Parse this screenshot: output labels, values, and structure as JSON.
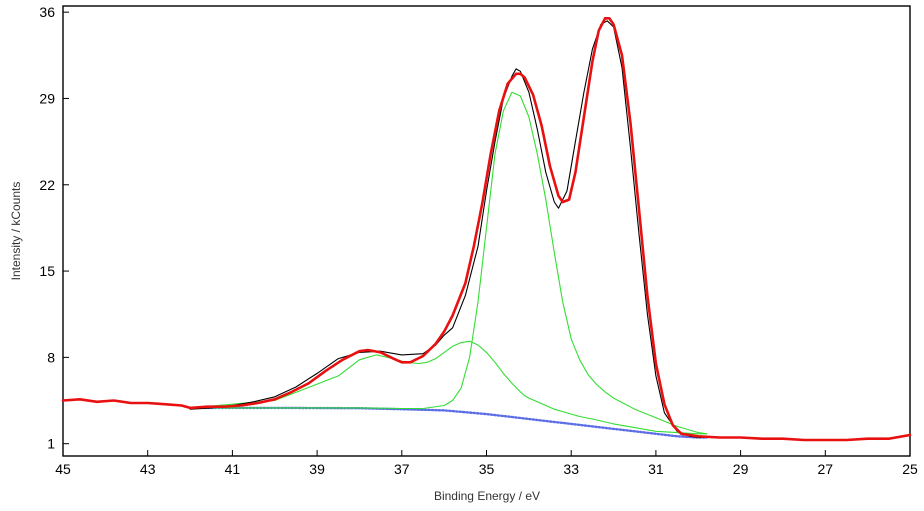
{
  "chart_data": {
    "type": "line",
    "title": "",
    "xlabel": "Binding Energy / eV",
    "ylabel": "Intensity / kCounts",
    "xlim": [
      45,
      25
    ],
    "ylim": [
      0,
      36.5
    ],
    "x_reversed": true,
    "grid": false,
    "x_ticks": [
      45,
      43,
      41,
      39,
      37,
      35,
      33,
      31,
      29,
      27,
      25
    ],
    "y_ticks": [
      1,
      8,
      15,
      22,
      29,
      36
    ],
    "series": [
      {
        "role": "measured",
        "color": "#000000",
        "x": [
          42,
          41.5,
          41,
          40.5,
          40,
          39.5,
          39,
          38.5,
          38,
          37.5,
          37,
          36.5,
          36.2,
          36,
          35.8,
          35.5,
          35.2,
          35,
          34.8,
          34.6,
          34.4,
          34.3,
          34.2,
          34,
          33.8,
          33.6,
          33.4,
          33.3,
          33.1,
          32.9,
          32.7,
          32.5,
          32.3,
          32.15,
          32,
          31.8,
          31.6,
          31.4,
          31.2,
          31,
          30.8,
          30.5,
          30.2,
          30,
          29.8
        ],
        "values": [
          3.8,
          3.9,
          4.1,
          4.4,
          4.8,
          5.6,
          6.7,
          7.9,
          8.4,
          8.5,
          8.2,
          8.3,
          9.0,
          9.8,
          10.4,
          13.0,
          17.0,
          21.5,
          25.5,
          29.0,
          30.8,
          31.4,
          31.2,
          29.5,
          26.5,
          23.0,
          20.6,
          20.1,
          21.5,
          25.5,
          29.5,
          33.0,
          35.0,
          35.3,
          34.8,
          31.5,
          25.0,
          18.0,
          11.5,
          6.5,
          3.5,
          2.0,
          1.6,
          1.5,
          1.5
        ]
      },
      {
        "role": "envelope",
        "color": "#e81010",
        "x": [
          45,
          44.6,
          44.2,
          43.8,
          43.4,
          43,
          42.6,
          42.2,
          42,
          41.6,
          41.2,
          40.8,
          40.4,
          40,
          39.6,
          39.2,
          38.8,
          38.4,
          38,
          37.8,
          37.5,
          37.2,
          37,
          36.8,
          36.5,
          36.2,
          36,
          35.8,
          35.5,
          35.3,
          35.1,
          34.9,
          34.7,
          34.5,
          34.3,
          34.2,
          34.1,
          33.9,
          33.7,
          33.5,
          33.3,
          33.2,
          33.05,
          32.9,
          32.7,
          32.5,
          32.35,
          32.2,
          32.1,
          32,
          31.8,
          31.6,
          31.4,
          31.2,
          31,
          30.8,
          30.6,
          30.4,
          30,
          29.5,
          29,
          28.5,
          28,
          27.5,
          27,
          26.5,
          26,
          25.5,
          25
        ],
        "values": [
          4.5,
          4.6,
          4.4,
          4.5,
          4.3,
          4.3,
          4.2,
          4.1,
          3.9,
          4.0,
          4.0,
          4.1,
          4.3,
          4.6,
          5.2,
          5.9,
          6.9,
          7.8,
          8.5,
          8.6,
          8.4,
          7.9,
          7.6,
          7.6,
          8.1,
          9.1,
          10.1,
          11.4,
          14.0,
          17.0,
          20.5,
          24.5,
          28.0,
          30.2,
          31.0,
          31.0,
          30.7,
          29.3,
          26.8,
          23.5,
          21.1,
          20.6,
          20.8,
          23.0,
          27.5,
          32.0,
          34.5,
          35.5,
          35.5,
          35.0,
          32.5,
          27.0,
          20.0,
          13.0,
          7.5,
          4.2,
          2.5,
          1.8,
          1.6,
          1.5,
          1.5,
          1.4,
          1.4,
          1.3,
          1.3,
          1.3,
          1.4,
          1.4,
          1.7
        ]
      },
      {
        "role": "component",
        "color": "#33dd33",
        "x": [
          42,
          40,
          38.5,
          38,
          37.6,
          37.2,
          36.9,
          36.6,
          36.4,
          36.2,
          36,
          35.8,
          35.6,
          35.4,
          35.2,
          35,
          34.8,
          34.6,
          34.4,
          34.2,
          34.1,
          34,
          33.8,
          33.6,
          33.4,
          33.2,
          33,
          32.8,
          32.5,
          32,
          31.5,
          31,
          30.5,
          30,
          29.8
        ],
        "values": [
          3.9,
          4.5,
          6.5,
          7.8,
          8.2,
          7.9,
          7.6,
          7.5,
          7.6,
          7.9,
          8.4,
          8.9,
          9.2,
          9.3,
          9.0,
          8.4,
          7.6,
          6.7,
          5.9,
          5.2,
          4.9,
          4.7,
          4.4,
          4.1,
          3.8,
          3.6,
          3.4,
          3.2,
          3.0,
          2.6,
          2.3,
          2.0,
          1.9,
          1.8,
          1.8
        ]
      },
      {
        "role": "component",
        "color": "#33dd33",
        "x": [
          42,
          38,
          37,
          36.5,
          36,
          35.8,
          35.6,
          35.4,
          35.2,
          35,
          34.8,
          34.6,
          34.4,
          34.2,
          34,
          33.8,
          33.6,
          33.4,
          33.2,
          33,
          32.8,
          32.6,
          32.4,
          32.2,
          32,
          31.5,
          31,
          30.5,
          30,
          29.8
        ],
        "values": [
          3.9,
          3.9,
          3.85,
          3.85,
          4.1,
          4.5,
          5.5,
          8.0,
          12.5,
          18.5,
          24.5,
          28.0,
          29.5,
          29.2,
          27.5,
          24.5,
          20.8,
          16.5,
          12.5,
          9.5,
          7.8,
          6.6,
          5.8,
          5.2,
          4.7,
          3.8,
          3.1,
          2.4,
          1.9,
          1.8
        ]
      },
      {
        "role": "background",
        "color": "#5c6ee6",
        "x": [
          42,
          40,
          38,
          37,
          36,
          35.5,
          35,
          34.5,
          34,
          33.5,
          33,
          32.5,
          32,
          31.5,
          31,
          30.5,
          30,
          29.8
        ],
        "values": [
          3.9,
          3.9,
          3.88,
          3.8,
          3.7,
          3.55,
          3.4,
          3.2,
          3.0,
          2.8,
          2.6,
          2.4,
          2.2,
          2.0,
          1.8,
          1.6,
          1.5,
          1.5
        ]
      }
    ]
  }
}
